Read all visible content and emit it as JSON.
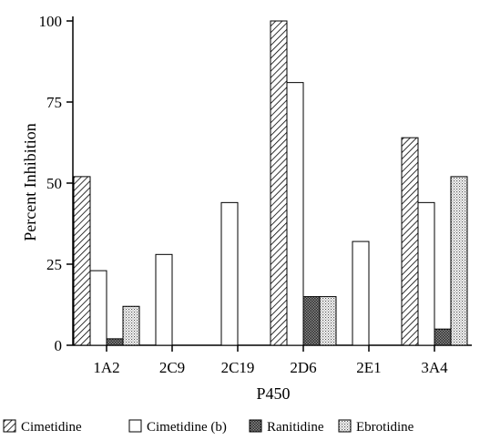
{
  "chart_data": {
    "type": "bar",
    "title": "",
    "xlabel": "P450",
    "ylabel": "Percent Inhibition",
    "ylim": [
      0,
      100
    ],
    "yticks": [
      "0",
      "25",
      "50",
      "75",
      "100"
    ],
    "categories": [
      "1A2",
      "2C9",
      "2C19",
      "2D6",
      "2E1",
      "3A4"
    ],
    "series": [
      {
        "name": "Cimetidine",
        "pattern": "diagonal-hatch",
        "values": [
          52,
          0,
          0,
          100,
          0,
          64
        ]
      },
      {
        "name": "Cimetidine (b)",
        "pattern": "white",
        "values": [
          23,
          28,
          44,
          81,
          32,
          44
        ]
      },
      {
        "name": "Ranitidine",
        "pattern": "dark-crosshatch",
        "values": [
          2,
          0,
          0,
          15,
          0,
          5
        ]
      },
      {
        "name": "Ebrotidine",
        "pattern": "light-dots",
        "values": [
          12,
          0,
          0,
          15,
          0,
          52
        ]
      }
    ],
    "grid": false,
    "legend_position": "bottom"
  },
  "colors": {
    "stroke": "#000000",
    "background": "#ffffff",
    "ranitidine_fill": "#6e6e6e",
    "ebrotidine_fill": "#d9d9d9"
  }
}
